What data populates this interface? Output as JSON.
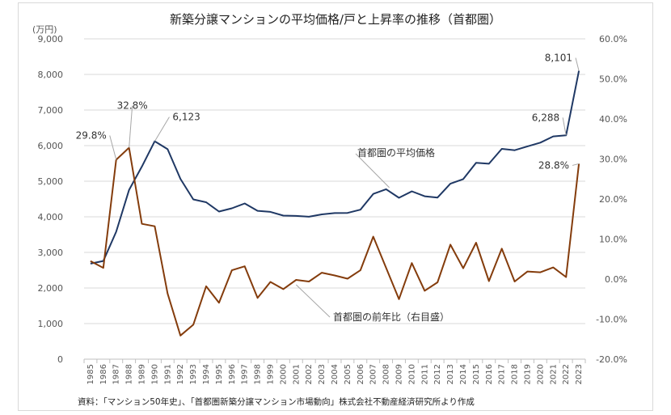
{
  "chart_data": {
    "type": "line",
    "title": "新築分譲マンションの平均価格/戸と上昇率の推移（首都圏）",
    "ylabel": "(万円)",
    "source": "資料：「マンション50年史」、「首都圏新築分譲マンション市場動向」株式会社不動産経済研究所より作成",
    "y_left": {
      "min": 0,
      "max": 9000,
      "step": 1000,
      "tick_labels": [
        "0",
        "1,000",
        "2,000",
        "3,000",
        "4,000",
        "5,000",
        "6,000",
        "7,000",
        "8,000",
        "9,000"
      ]
    },
    "y_right": {
      "min": -20,
      "max": 60,
      "step": 10,
      "tick_labels": [
        "-20.0%",
        "-10.0%",
        "0.0%",
        "10.0%",
        "20.0%",
        "30.0%",
        "40.0%",
        "50.0%",
        "60.0%"
      ]
    },
    "categories": [
      "1985",
      "1986",
      "1987",
      "1988",
      "1989",
      "1990",
      "1991",
      "1992",
      "1993",
      "1994",
      "1995",
      "1996",
      "1997",
      "1998",
      "1999",
      "2000",
      "2001",
      "2002",
      "2003",
      "2004",
      "2005",
      "2006",
      "2007",
      "2008",
      "2009",
      "2010",
      "2011",
      "2012",
      "2013",
      "2014",
      "2015",
      "2016",
      "2017",
      "2018",
      "2019",
      "2020",
      "2021",
      "2022",
      "2023"
    ],
    "series": [
      {
        "name": "首都圏の平均価格",
        "axis": "left",
        "color": "#1f3864",
        "values": [
          2683,
          2758,
          3579,
          4753,
          5411,
          6123,
          5900,
          5066,
          4488,
          4409,
          4148,
          4238,
          4374,
          4168,
          4138,
          4034,
          4026,
          4003,
          4069,
          4104,
          4108,
          4200,
          4644,
          4775,
          4535,
          4716,
          4578,
          4540,
          4929,
          5060,
          5518,
          5490,
          5908,
          5871,
          5980,
          6083,
          6260,
          6288,
          8101
        ],
        "label": "首都圏の平均価格"
      },
      {
        "name": "首都圏の前年比（右目盛）",
        "axis": "right",
        "color": "#843c0c",
        "values": [
          4.5,
          2.8,
          29.8,
          32.8,
          13.8,
          13.2,
          -3.6,
          -14.1,
          -11.4,
          -1.8,
          -5.9,
          2.2,
          3.2,
          -4.7,
          -0.7,
          -2.5,
          -0.2,
          -0.6,
          1.6,
          0.9,
          0.1,
          2.2,
          10.6,
          2.8,
          -5.0,
          4.0,
          -2.9,
          -0.8,
          8.6,
          2.7,
          9.1,
          -0.5,
          7.6,
          -0.6,
          1.9,
          1.7,
          2.9,
          0.5,
          28.8
        ],
        "label": "首都圏の前年比（右目盛）"
      }
    ],
    "annotations": [
      {
        "text": "29.8%",
        "series": 1,
        "index": 2
      },
      {
        "text": "32.8%",
        "series": 1,
        "index": 3
      },
      {
        "text": "6,123",
        "series": 0,
        "index": 5
      },
      {
        "text": "6,288",
        "series": 0,
        "index": 37
      },
      {
        "text": "8,101",
        "series": 0,
        "index": 38
      },
      {
        "text": "28.8%",
        "series": 1,
        "index": 38
      }
    ]
  }
}
